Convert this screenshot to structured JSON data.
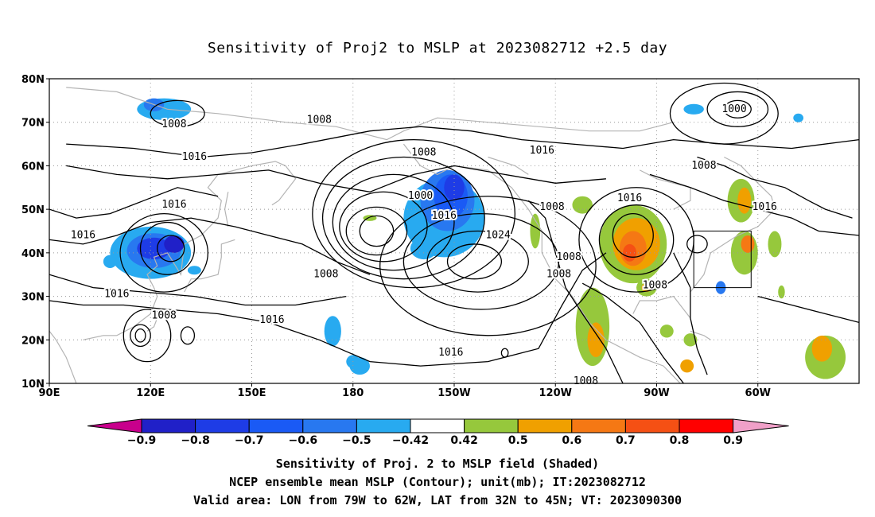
{
  "title": "Sensitivity of Proj2 to MSLP at 2023082712 +2.5 day",
  "axes": {
    "lat_ticks": [
      "80N",
      "70N",
      "60N",
      "50N",
      "40N",
      "30N",
      "20N",
      "10N"
    ],
    "lon_ticks": [
      "90E",
      "120E",
      "150E",
      "180",
      "150W",
      "120W",
      "90W",
      "60W"
    ]
  },
  "contour_labels": [
    {
      "text": "1008",
      "lon": 127,
      "lat": 69.5
    },
    {
      "text": "1008",
      "lon": 170,
      "lat": 70.5
    },
    {
      "text": "1008",
      "lon": -159,
      "lat": 63
    },
    {
      "text": "1016",
      "lon": -124,
      "lat": 63.5
    },
    {
      "text": "1000",
      "lon": -67,
      "lat": 73
    },
    {
      "text": "1016",
      "lon": 133,
      "lat": 62
    },
    {
      "text": "1016",
      "lon": 127,
      "lat": 51
    },
    {
      "text": "1000",
      "lon": -160,
      "lat": 53
    },
    {
      "text": "1008",
      "lon": -121,
      "lat": 50.5
    },
    {
      "text": "1016",
      "lon": -153,
      "lat": 48.5
    },
    {
      "text": "1008",
      "lon": -76,
      "lat": 60
    },
    {
      "text": "1016",
      "lon": -98,
      "lat": 52.5
    },
    {
      "text": "1016",
      "lon": -58,
      "lat": 50.5
    },
    {
      "text": "1016",
      "lon": 100,
      "lat": 44
    },
    {
      "text": "1024",
      "lon": -137,
      "lat": 44
    },
    {
      "text": "1008",
      "lon": -116,
      "lat": 39
    },
    {
      "text": "1008",
      "lon": -119,
      "lat": 35
    },
    {
      "text": "1008",
      "lon": 172,
      "lat": 35
    },
    {
      "text": "1008",
      "lon": -90.5,
      "lat": 32.5
    },
    {
      "text": "1016",
      "lon": 110,
      "lat": 30.5
    },
    {
      "text": "1008",
      "lon": 124,
      "lat": 25.5
    },
    {
      "text": "1016",
      "lon": 156,
      "lat": 24.5
    },
    {
      "text": "1016",
      "lon": -151,
      "lat": 17
    },
    {
      "text": "1008",
      "lon": -111,
      "lat": 10.5
    }
  ],
  "colorbar": {
    "labels": [
      "−0.9",
      "−0.8",
      "−0.7",
      "−0.6",
      "−0.5",
      "−0.42",
      "0.42",
      "0.5",
      "0.6",
      "0.7",
      "0.8",
      "0.9"
    ],
    "colors": [
      "#2020c8",
      "#1e3ce6",
      "#1a5af5",
      "#2878f0",
      "#28aaf0",
      "#ffffff",
      "#96c83c",
      "#f0a000",
      "#f57814",
      "#f55014",
      "#ff0000"
    ],
    "end_low": "#c8008c",
    "end_high": "#f0a0c8"
  },
  "captions": [
    "Sensitivity of Proj. 2 to MSLP field (Shaded)",
    "NCEP ensemble mean MSLP (Contour); unit(mb); IT:2023082712",
    "Valid area: LON from 79W to 62W, LAT from 32N to 45N; VT: 2023090300"
  ],
  "verification_box": {
    "lon_min": -79,
    "lon_max": -62,
    "lat_min": 32,
    "lat_max": 45
  },
  "chart_data": {
    "type": "map",
    "title": "Sensitivity of Proj2 to MSLP at 2023082712 +2.5 day",
    "lon_range": [
      "90E",
      "30W"
    ],
    "lat_range": [
      "10N",
      "80N"
    ],
    "shading_levels": [
      -0.9,
      -0.8,
      -0.7,
      -0.6,
      -0.5,
      -0.42,
      0.42,
      0.5,
      0.6,
      0.7,
      0.8,
      0.9
    ],
    "contour_unit": "mb",
    "contour_levels_labeled": [
      1000,
      1008,
      1016,
      1024
    ],
    "grid": "dotted",
    "sensitivity_regions": [
      {
        "sign": "negative",
        "max_level": -0.8,
        "lon": -152,
        "lat": 53
      },
      {
        "sign": "negative",
        "max_level": -0.7,
        "lon": 120,
        "lat": 40
      },
      {
        "sign": "negative",
        "max_level": -0.6,
        "lon": 122,
        "lat": 73
      },
      {
        "sign": "negative",
        "max_level": -0.6,
        "lon": -71,
        "lat": 32
      },
      {
        "sign": "negative",
        "max_level": -0.5,
        "lon": 174,
        "lat": 22
      },
      {
        "sign": "negative",
        "max_level": -0.5,
        "lon": -178,
        "lat": 14
      },
      {
        "sign": "positive",
        "max_level": 0.7,
        "lon": -97,
        "lat": 42
      },
      {
        "sign": "positive",
        "max_level": 0.6,
        "lon": -109,
        "lat": 23
      },
      {
        "sign": "positive",
        "max_level": 0.6,
        "lon": -40,
        "lat": 16
      },
      {
        "sign": "positive",
        "max_level": 0.6,
        "lon": -64,
        "lat": 40
      }
    ]
  }
}
